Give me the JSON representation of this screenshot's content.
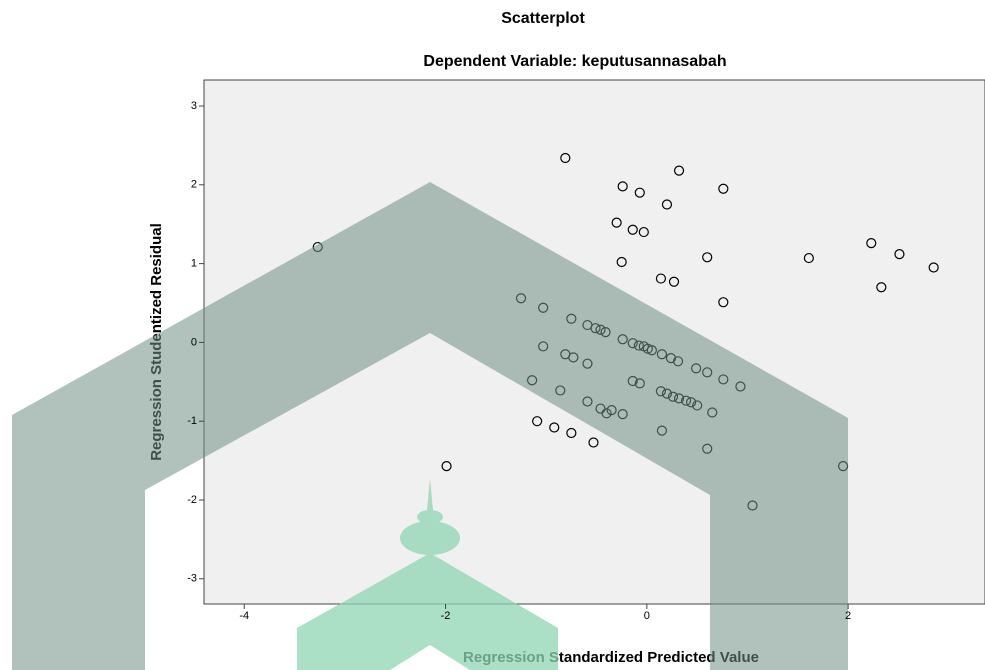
{
  "chart_data": {
    "type": "scatter",
    "title": "Scatterplot",
    "subtitle": "Dependent Variable: keputusannasabah",
    "x_label": "Regression Standardized Predicted Value",
    "y_label": "Regression Studentized Residual",
    "xlim": [
      -4.4,
      3.36
    ],
    "ylim": [
      -3.32,
      3.33
    ],
    "xticks": [
      -4,
      -2,
      0,
      2
    ],
    "yticks": [
      -3,
      -2,
      -1,
      0,
      1,
      2,
      3
    ],
    "color": "#000000",
    "x": [
      -0.81,
      -0.24,
      0.32,
      -0.07,
      0.76,
      0.2,
      -0.3,
      -0.14,
      -0.03,
      -3.27,
      2.23,
      2.51,
      2.85,
      1.61,
      0.6,
      -0.25,
      0.14,
      0.27,
      2.33,
      0.76,
      -1.25,
      -1.03,
      -0.75,
      -0.59,
      -0.51,
      -0.46,
      -0.41,
      -0.24,
      -0.14,
      -0.08,
      -0.03,
      0.01,
      0.05,
      0.15,
      0.24,
      0.31,
      0.49,
      0.6,
      0.76,
      0.93,
      -1.03,
      -0.81,
      -0.73,
      -0.59,
      -1.14,
      -0.14,
      -0.07,
      -0.86,
      0.14,
      0.2,
      0.26,
      0.32,
      0.39,
      0.44,
      0.5,
      -0.59,
      -0.46,
      -0.4,
      -0.35,
      -0.24,
      0.65,
      -1.09,
      -0.92,
      -0.75,
      0.15,
      -0.53,
      0.6,
      -1.99,
      1.95,
      1.05
    ],
    "y": [
      2.34,
      1.98,
      2.18,
      1.9,
      1.95,
      1.75,
      1.52,
      1.43,
      1.4,
      1.21,
      1.26,
      1.12,
      0.95,
      1.07,
      1.08,
      1.02,
      0.81,
      0.77,
      0.7,
      0.51,
      0.56,
      0.44,
      0.3,
      0.22,
      0.18,
      0.16,
      0.13,
      0.04,
      -0.01,
      -0.04,
      -0.05,
      -0.08,
      -0.1,
      -0.15,
      -0.2,
      -0.24,
      -0.33,
      -0.38,
      -0.47,
      -0.56,
      -0.05,
      -0.15,
      -0.19,
      -0.27,
      -0.48,
      -0.49,
      -0.52,
      -0.61,
      -0.62,
      -0.65,
      -0.69,
      -0.71,
      -0.74,
      -0.76,
      -0.8,
      -0.75,
      -0.84,
      -0.9,
      -0.86,
      -0.91,
      -0.89,
      -1.0,
      -1.08,
      -1.15,
      -1.12,
      -1.27,
      -1.35,
      -1.57,
      -1.57,
      -2.07
    ]
  }
}
